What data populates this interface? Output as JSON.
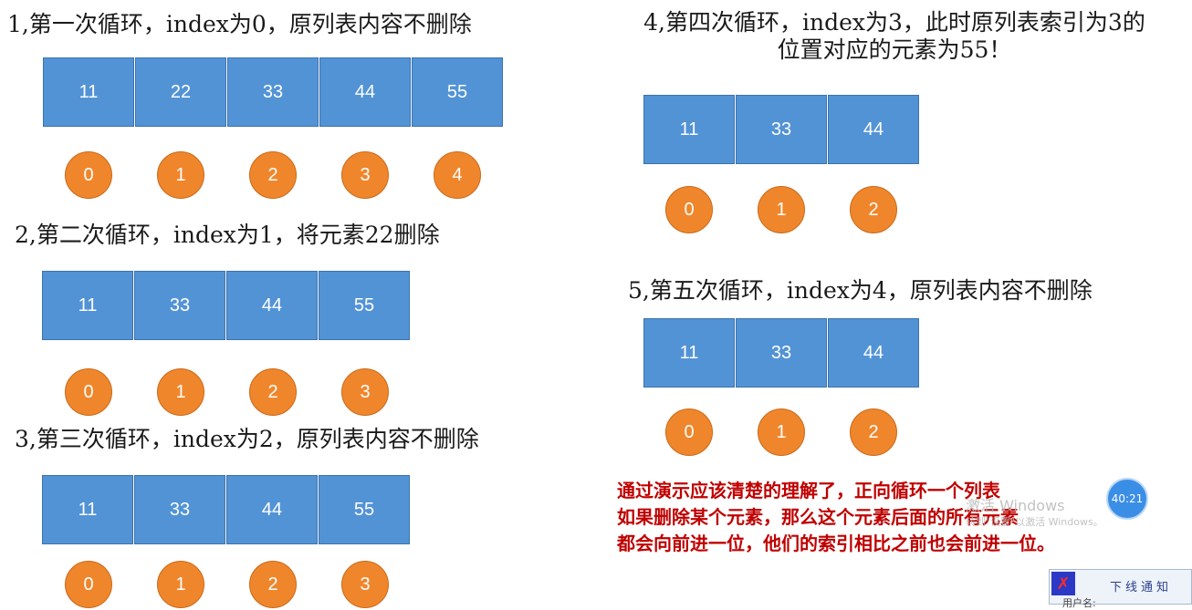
{
  "steps": [
    {
      "title": "1,第一次循环，index为0，原列表内容不删除",
      "values": [
        "11",
        "22",
        "33",
        "44",
        "55"
      ],
      "indices": [
        "0",
        "1",
        "2",
        "3",
        "4"
      ]
    },
    {
      "title": "2,第二次循环，index为1，将元素22删除",
      "values": [
        "11",
        "33",
        "44",
        "55"
      ],
      "indices": [
        "0",
        "1",
        "2",
        "3"
      ]
    },
    {
      "title": "3,第三次循环，index为2，原列表内容不删除",
      "values": [
        "11",
        "33",
        "44",
        "55"
      ],
      "indices": [
        "0",
        "1",
        "2",
        "3"
      ]
    },
    {
      "title_line1": "4,第四次循环，index为3，此时原列表索引为3的",
      "title_line2": "位置对应的元素为55！",
      "values": [
        "11",
        "33",
        "44"
      ],
      "indices": [
        "0",
        "1",
        "2"
      ]
    },
    {
      "title": "5,第五次循环，index为4，原列表内容不删除",
      "values": [
        "11",
        "33",
        "44"
      ],
      "indices": [
        "0",
        "1",
        "2"
      ]
    }
  ],
  "conclusion": [
    " 通过演示应该清楚的理解了，正向循环一个列表",
    "如果删除某个元素，那么这个元素后面的所有元素",
    "都会向前进一位，他们的索引相比之前也会前进一位。"
  ],
  "overlay": {
    "watermark_line1": "激活 Windows",
    "watermark_line2": "转到\"设置\"以激活 Windows。",
    "timer": "40:21",
    "notify_title": "下线通知",
    "notify_user": "用户名:"
  },
  "colors": {
    "cell": "#5293d6",
    "index": "#f0862b",
    "conclusion": "#c00000"
  }
}
